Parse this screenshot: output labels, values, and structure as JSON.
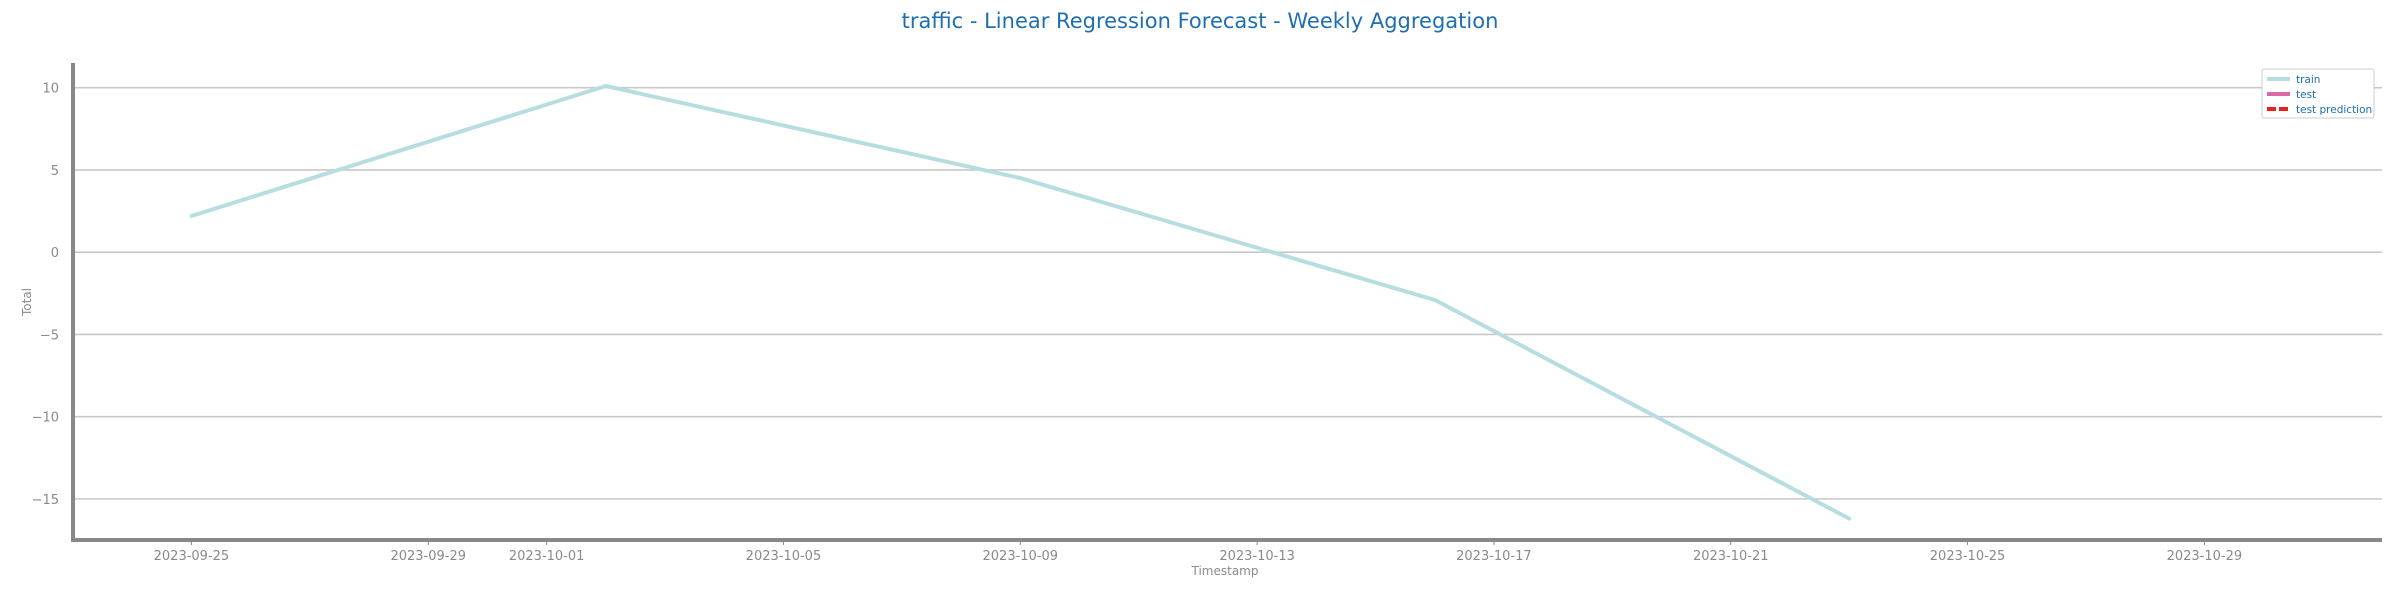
{
  "chart_data": {
    "type": "line",
    "title": "traffic - Linear Regression Forecast - Weekly Aggregation",
    "xlabel": "Timestamp",
    "ylabel": "Total",
    "x_ticks": [
      "2023-09-25",
      "2023-09-29",
      "2023-10-01",
      "2023-10-05",
      "2023-10-09",
      "2023-10-13",
      "2023-10-17",
      "2023-10-21",
      "2023-10-25",
      "2023-10-29"
    ],
    "y_ticks": [
      10,
      5,
      0,
      -5,
      -10,
      -15
    ],
    "y_tick_labels": [
      "10",
      "5",
      "0",
      "−5",
      "−10",
      "−15"
    ],
    "xlim": [
      "2023-09-23",
      "2023-11-01"
    ],
    "ylim": [
      -17.5,
      11.5
    ],
    "grid": "horizontal",
    "legend_position": "top-right",
    "legend": [
      {
        "key": "train",
        "label": "train",
        "color": "#b7dde0",
        "style": "solid"
      },
      {
        "key": "test",
        "label": "test",
        "color": "#d96aa7",
        "style": "solid"
      },
      {
        "key": "test_prediction",
        "label": "test prediction",
        "color": "#e8211c",
        "style": "dashed"
      }
    ],
    "series": [
      {
        "name": "train",
        "color": "#b7dde0",
        "x": [
          "2023-09-25",
          "2023-10-02",
          "2023-10-09",
          "2023-10-16",
          "2023-10-23"
        ],
        "y": [
          2.2,
          10.1,
          4.5,
          -2.9,
          -16.2
        ]
      }
    ]
  }
}
